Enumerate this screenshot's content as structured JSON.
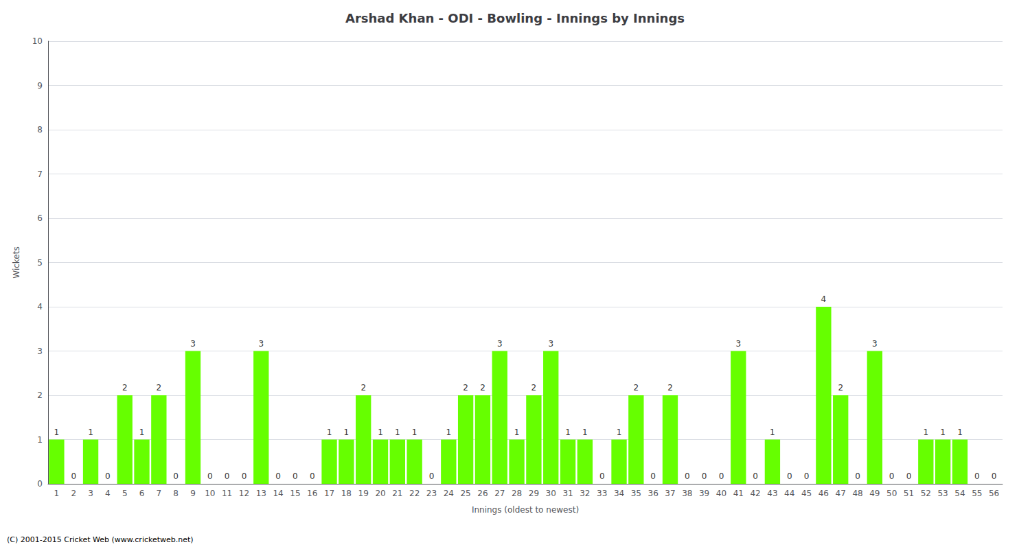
{
  "chart_data": {
    "type": "bar",
    "title": "Arshad Khan - ODI - Bowling - Innings by Innings",
    "x_label": "Innings (oldest to newest)",
    "y_label": "Wickets",
    "categories": [
      "1",
      "2",
      "3",
      "4",
      "5",
      "6",
      "7",
      "8",
      "9",
      "10",
      "11",
      "12",
      "13",
      "14",
      "15",
      "16",
      "17",
      "18",
      "19",
      "20",
      "21",
      "22",
      "23",
      "24",
      "25",
      "26",
      "27",
      "28",
      "29",
      "30",
      "31",
      "32",
      "33",
      "34",
      "35",
      "36",
      "37",
      "38",
      "39",
      "40",
      "41",
      "42",
      "43",
      "44",
      "45",
      "46",
      "47",
      "48",
      "49",
      "50",
      "51",
      "52",
      "53",
      "54",
      "55",
      "56"
    ],
    "values": [
      1,
      0,
      1,
      0,
      2,
      1,
      2,
      0,
      3,
      0,
      0,
      0,
      3,
      0,
      0,
      0,
      1,
      1,
      2,
      1,
      1,
      1,
      0,
      1,
      2,
      2,
      3,
      1,
      2,
      3,
      1,
      1,
      0,
      1,
      2,
      0,
      2,
      0,
      0,
      0,
      3,
      0,
      1,
      0,
      0,
      4,
      2,
      0,
      3,
      0,
      0,
      1,
      1,
      1,
      0,
      0
    ],
    "color": "#66FF00",
    "ylim": [
      0,
      10
    ],
    "yticks": [
      0,
      1,
      2,
      3,
      4,
      5,
      6,
      7,
      8,
      9,
      10
    ],
    "grid": true,
    "data_labels": true,
    "annotations": [
      "(C) 2001-2015 Cricket Web (www.cricketweb.net)"
    ]
  }
}
